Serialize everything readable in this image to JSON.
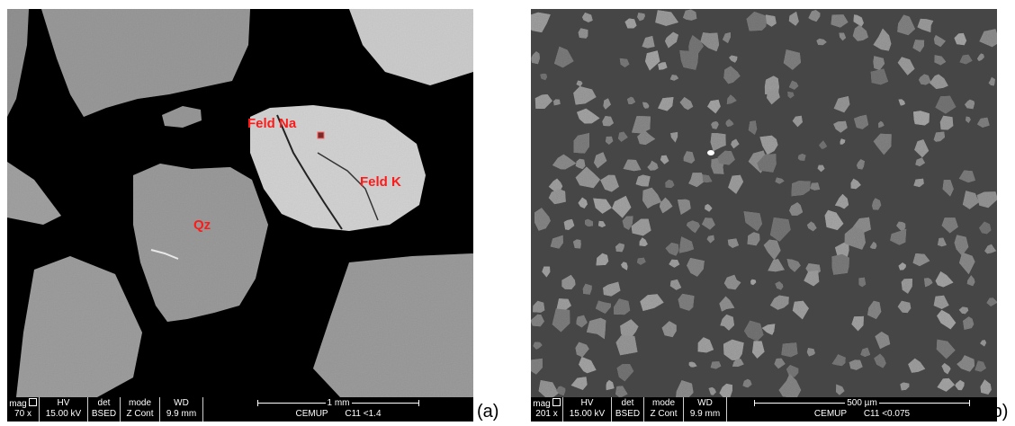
{
  "panels": [
    {
      "id": "a",
      "letter": "(a)",
      "mineral_labels": {
        "feld_na": "Feld Na",
        "feld_k": "Feld K",
        "qz": "Qz"
      },
      "databar": {
        "mag_label": "mag",
        "mag_value": "70 x",
        "hv_label": "HV",
        "hv_value": "15.00 kV",
        "det_label": "det",
        "det_value": "BSED",
        "mode_label": "mode",
        "mode_value": "Z Cont",
        "wd_label": "WD",
        "wd_value": "9.9 mm",
        "scale_text": "1 mm",
        "facility": "CEMUP",
        "sample": "C11 <1.4"
      }
    },
    {
      "id": "b",
      "letter": "(b)",
      "databar": {
        "mag_label": "mag",
        "mag_value": "201 x",
        "hv_label": "HV",
        "hv_value": "15.00 kV",
        "det_label": "det",
        "det_value": "BSED",
        "mode_label": "mode",
        "mode_value": "Z Cont",
        "wd_label": "WD",
        "wd_value": "9.9 mm",
        "scale_text": "500 µm",
        "facility": "CEMUP",
        "sample": "C11 <0.075"
      }
    }
  ],
  "colors": {
    "background_a": "#000000",
    "background_b": "#464646",
    "grain_grey": "#9a9a9a",
    "grain_light": "#c9c9c9",
    "label_red": "#ff1a1a"
  }
}
